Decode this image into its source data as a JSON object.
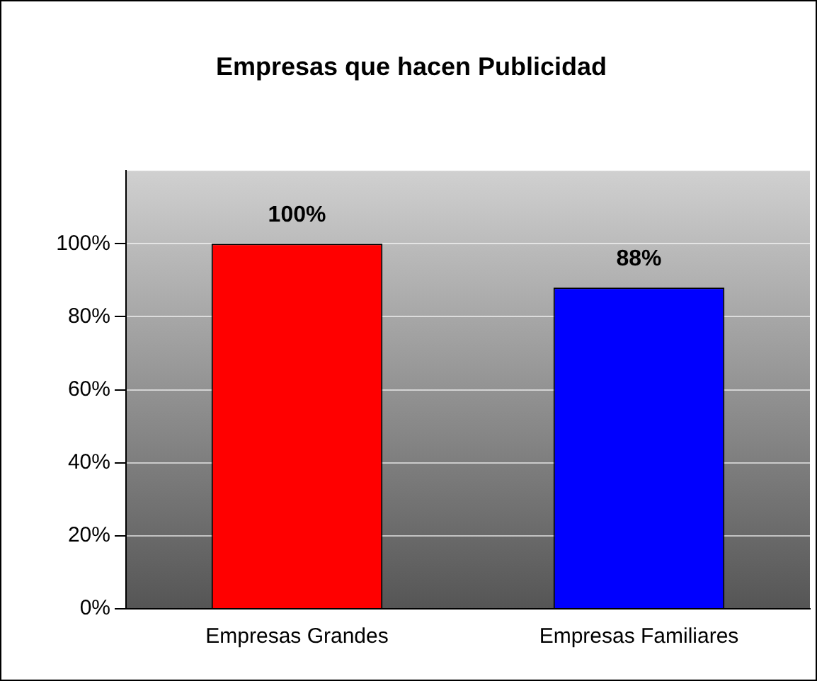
{
  "chart_data": {
    "type": "bar",
    "title": "Empresas que hacen Publicidad",
    "categories": [
      "Empresas Grandes",
      "Empresas Familiares"
    ],
    "values": [
      100,
      88
    ],
    "colors": [
      "#ff0000",
      "#0000ff"
    ],
    "value_labels": [
      "100%",
      "88%"
    ],
    "ylim": [
      0,
      120
    ],
    "yticks": [
      {
        "value": 0,
        "label": "0%"
      },
      {
        "value": 20,
        "label": "20%"
      },
      {
        "value": 40,
        "label": "40%"
      },
      {
        "value": 60,
        "label": "60%"
      },
      {
        "value": 80,
        "label": "80%"
      },
      {
        "value": 100,
        "label": "100%"
      }
    ],
    "grid": "y",
    "legend": false
  }
}
